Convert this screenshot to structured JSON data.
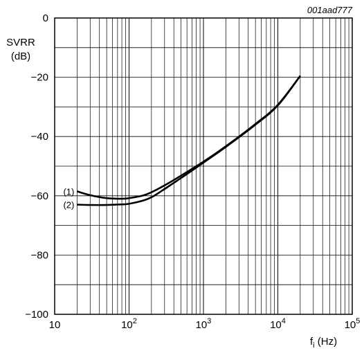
{
  "figure_ref": "001aad777",
  "chart_data": {
    "type": "line",
    "title": "",
    "ylabel_line1": "SVRR",
    "ylabel_line2": "(dB)",
    "xlabel_main": "f",
    "xlabel_sub": "i",
    "xlabel_unit": "(Hz)",
    "xscale": "log",
    "xlim": [
      10,
      100000
    ],
    "ylim": [
      -100,
      0
    ],
    "grid": true,
    "x_ticks": [
      {
        "value": 10,
        "base": "10",
        "exp": ""
      },
      {
        "value": 100,
        "base": "10",
        "exp": "2"
      },
      {
        "value": 1000,
        "base": "10",
        "exp": "3"
      },
      {
        "value": 10000,
        "base": "10",
        "exp": "4"
      },
      {
        "value": 100000,
        "base": "10",
        "exp": "5"
      }
    ],
    "y_ticks": [
      {
        "value": 0,
        "label": "0"
      },
      {
        "value": -20,
        "label": "−20"
      },
      {
        "value": -40,
        "label": "−40"
      },
      {
        "value": -60,
        "label": "−60"
      },
      {
        "value": -80,
        "label": "−80"
      },
      {
        "value": -100,
        "label": "−100"
      }
    ],
    "series": [
      {
        "name": "(1)",
        "x": [
          20,
          30,
          50,
          80,
          100,
          150,
          200,
          300,
          500,
          1000,
          2000,
          5000,
          10000,
          20000
        ],
        "y": [
          -58.5,
          -59.8,
          -60.8,
          -61.0,
          -60.8,
          -60.0,
          -58.8,
          -56.5,
          -53.2,
          -48.5,
          -43.3,
          -35.8,
          -29.3,
          -19.5
        ]
      },
      {
        "name": "(2)",
        "x": [
          20,
          30,
          50,
          80,
          100,
          150,
          200,
          300,
          500,
          1000,
          2000,
          5000,
          10000,
          20000
        ],
        "y": [
          -63.0,
          -63.1,
          -63.1,
          -62.9,
          -62.7,
          -61.7,
          -60.5,
          -57.7,
          -54.0,
          -48.8,
          -43.5,
          -36.0,
          -29.5,
          -19.5
        ]
      }
    ]
  }
}
